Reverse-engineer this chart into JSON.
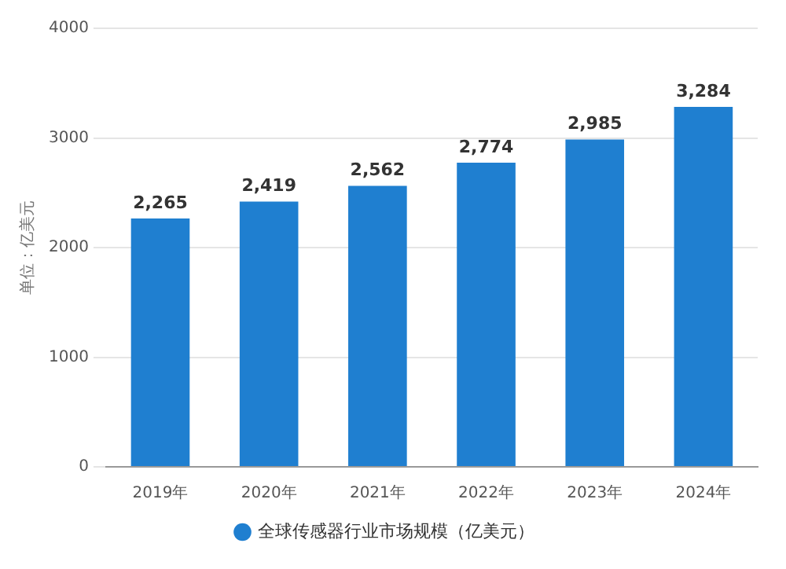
{
  "chart_data": {
    "type": "bar",
    "ylabel": "单位：亿美元",
    "categories": [
      "2019年",
      "2020年",
      "2021年",
      "2022年",
      "2023年",
      "2024年"
    ],
    "series": [
      {
        "name": "全球传感器行业市场规模（亿美元）",
        "color": "#1f7fd0",
        "values": [
          2265,
          2419,
          2562,
          2774,
          2985,
          3284
        ],
        "value_labels": [
          "2,265",
          "2,419",
          "2,562",
          "2,774",
          "2,985",
          "3,284"
        ]
      }
    ],
    "ylim": [
      0,
      4000
    ],
    "yticks": [
      0,
      1000,
      2000,
      3000,
      4000
    ],
    "grid": "y",
    "legend": "bottom"
  }
}
